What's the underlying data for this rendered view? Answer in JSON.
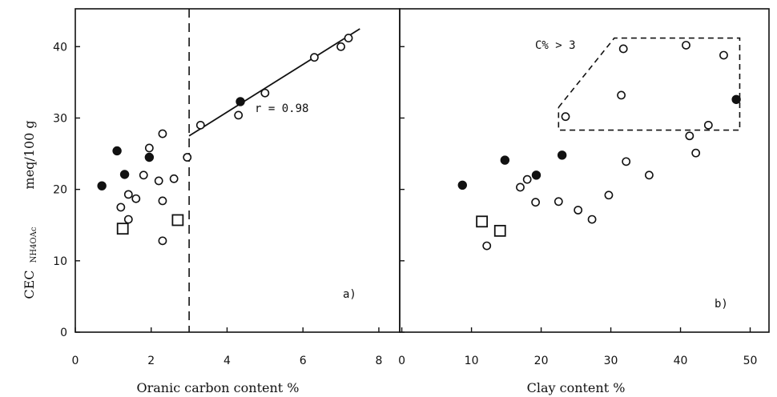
{
  "chart_data": [
    {
      "type": "scatter",
      "panel_label": "a)",
      "xlabel": "Oranic carbon content   %",
      "ylabel": "CEC",
      "ylabel_sub": "NH4OAc",
      "ylabel_unit": "meq/100 g",
      "xlim": [
        0,
        8
      ],
      "ylim": [
        0,
        45
      ],
      "x_ticks": [
        0,
        2,
        4,
        6,
        8
      ],
      "y_ticks": [
        0,
        10,
        20,
        30,
        40
      ],
      "threshold_x": 3,
      "annotation": "r = 0.98",
      "regression": {
        "x": [
          3.0,
          7.5
        ],
        "y": [
          27.5,
          42.5
        ]
      },
      "series": [
        {
          "marker": "open-circle",
          "points": [
            [
              1.2,
              17.5
            ],
            [
              1.4,
              19.3
            ],
            [
              1.4,
              15.8
            ],
            [
              1.6,
              18.7
            ],
            [
              1.8,
              22.0
            ],
            [
              1.95,
              25.8
            ],
            [
              2.2,
              21.2
            ],
            [
              2.3,
              27.8
            ],
            [
              2.3,
              18.4
            ],
            [
              2.3,
              12.8
            ],
            [
              2.6,
              21.5
            ],
            [
              2.95,
              24.5
            ],
            [
              3.3,
              29.0
            ],
            [
              4.3,
              30.4
            ],
            [
              5.0,
              33.5
            ],
            [
              6.3,
              38.5
            ],
            [
              7.0,
              40.0
            ],
            [
              7.2,
              41.2
            ]
          ]
        },
        {
          "marker": "filled-circle",
          "points": [
            [
              0.7,
              20.5
            ],
            [
              1.1,
              25.4
            ],
            [
              1.3,
              22.1
            ],
            [
              1.95,
              24.5
            ],
            [
              4.35,
              32.3
            ]
          ]
        },
        {
          "marker": "open-square",
          "points": [
            [
              1.25,
              14.5
            ],
            [
              2.7,
              15.7
            ]
          ]
        }
      ]
    },
    {
      "type": "scatter",
      "panel_label": "b)",
      "xlabel": "Clay content   %",
      "xlim": [
        0,
        52
      ],
      "ylim": [
        0,
        45
      ],
      "x_ticks": [
        0,
        10,
        20,
        30,
        40,
        50
      ],
      "y_ticks": [
        0,
        10,
        20,
        30,
        40
      ],
      "annotation": "C% > 3",
      "enclosure": {
        "x": [
          22.5,
          30.5,
          48.5,
          48.5,
          22.5,
          22.5
        ],
        "y": [
          31.5,
          41.2,
          41.2,
          28.3,
          28.3,
          31.5
        ]
      },
      "series": [
        {
          "marker": "open-circle",
          "points": [
            [
              12.2,
              12.1
            ],
            [
              17.0,
              20.3
            ],
            [
              18.0,
              21.4
            ],
            [
              19.2,
              18.2
            ],
            [
              22.5,
              18.3
            ],
            [
              23.5,
              30.2
            ],
            [
              25.3,
              17.1
            ],
            [
              27.3,
              15.8
            ],
            [
              29.7,
              19.2
            ],
            [
              31.5,
              33.2
            ],
            [
              31.8,
              39.7
            ],
            [
              32.2,
              23.9
            ],
            [
              35.5,
              22.0
            ],
            [
              40.8,
              40.2
            ],
            [
              41.3,
              27.5
            ],
            [
              42.2,
              25.1
            ],
            [
              44.0,
              29.0
            ],
            [
              46.2,
              38.8
            ]
          ]
        },
        {
          "marker": "filled-circle",
          "points": [
            [
              8.7,
              20.6
            ],
            [
              14.8,
              24.1
            ],
            [
              19.3,
              22.0
            ],
            [
              23.0,
              24.8
            ],
            [
              48.0,
              32.6
            ]
          ]
        },
        {
          "marker": "open-square",
          "points": [
            [
              11.5,
              15.5
            ],
            [
              14.1,
              14.2
            ]
          ]
        }
      ]
    }
  ]
}
